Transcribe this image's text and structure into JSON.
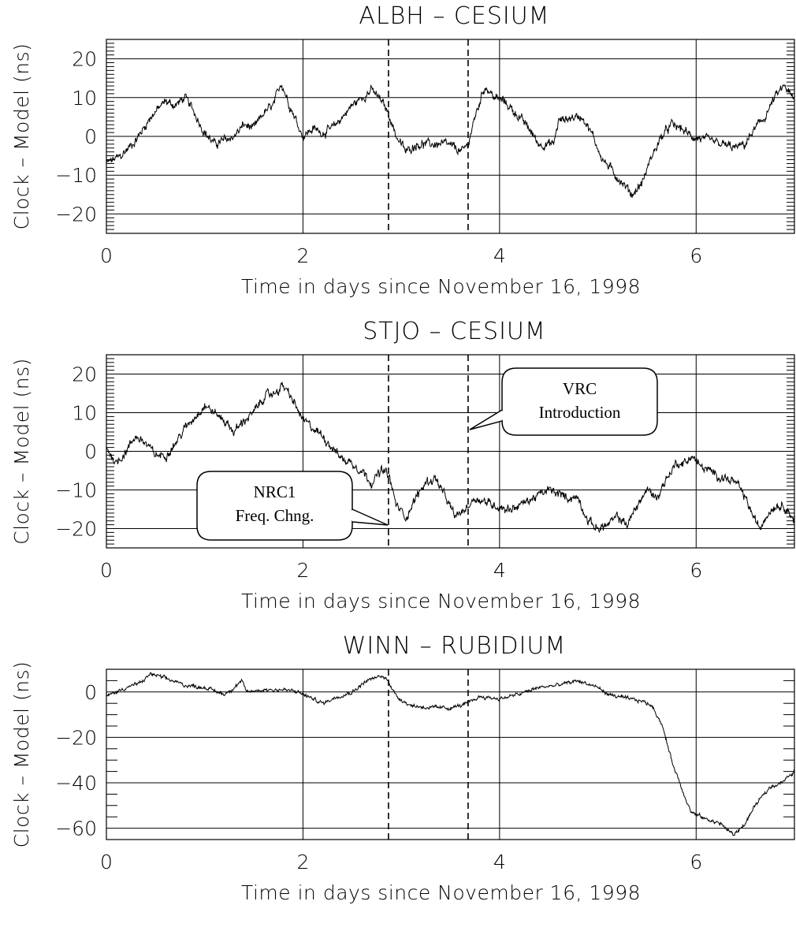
{
  "chart_data": [
    {
      "type": "line",
      "title": "ALBH – CESIUM",
      "xlabel": "Time in days since November 16, 1998",
      "ylabel": "Clock – Model (ns)",
      "xlim": [
        0,
        7
      ],
      "ylim": [
        -25,
        25
      ],
      "x_ticks": [
        0,
        2,
        4,
        6
      ],
      "y_ticks": [
        -20,
        -10,
        0,
        10,
        20
      ],
      "grid": true,
      "vlines": [
        2.87,
        3.68
      ],
      "anchors": [
        [
          0,
          -7
        ],
        [
          0.15,
          -5
        ],
        [
          0.3,
          -1
        ],
        [
          0.45,
          5
        ],
        [
          0.6,
          9
        ],
        [
          0.7,
          8
        ],
        [
          0.8,
          10
        ],
        [
          0.9,
          6
        ],
        [
          1.0,
          1
        ],
        [
          1.1,
          -2
        ],
        [
          1.2,
          -1
        ],
        [
          1.3,
          0
        ],
        [
          1.4,
          3
        ],
        [
          1.5,
          2
        ],
        [
          1.6,
          6
        ],
        [
          1.7,
          8
        ],
        [
          1.78,
          14
        ],
        [
          1.85,
          9
        ],
        [
          1.95,
          3
        ],
        [
          2.0,
          0
        ],
        [
          2.1,
          2
        ],
        [
          2.2,
          1
        ],
        [
          2.3,
          2
        ],
        [
          2.4,
          5
        ],
        [
          2.5,
          8
        ],
        [
          2.6,
          10
        ],
        [
          2.7,
          12
        ],
        [
          2.8,
          9
        ],
        [
          2.87,
          6
        ],
        [
          2.95,
          0
        ],
        [
          3.05,
          -4
        ],
        [
          3.15,
          -2
        ],
        [
          3.3,
          -2
        ],
        [
          3.45,
          -2
        ],
        [
          3.55,
          -3
        ],
        [
          3.62,
          -4
        ],
        [
          3.68,
          -2
        ],
        [
          3.75,
          5
        ],
        [
          3.85,
          13
        ],
        [
          3.95,
          10
        ],
        [
          4.05,
          9
        ],
        [
          4.2,
          5
        ],
        [
          4.3,
          2
        ],
        [
          4.4,
          -2
        ],
        [
          4.55,
          -2
        ],
        [
          4.6,
          4
        ],
        [
          4.75,
          5
        ],
        [
          4.85,
          5
        ],
        [
          4.95,
          0
        ],
        [
          5.05,
          -6
        ],
        [
          5.15,
          -9
        ],
        [
          5.25,
          -12
        ],
        [
          5.35,
          -15
        ],
        [
          5.45,
          -12
        ],
        [
          5.55,
          -5
        ],
        [
          5.65,
          0
        ],
        [
          5.75,
          3
        ],
        [
          5.85,
          2
        ],
        [
          5.95,
          0
        ],
        [
          6.1,
          -1
        ],
        [
          6.25,
          -2
        ],
        [
          6.4,
          -3
        ],
        [
          6.5,
          -2
        ],
        [
          6.6,
          2
        ],
        [
          6.7,
          5
        ],
        [
          6.8,
          10
        ],
        [
          6.9,
          13
        ],
        [
          7.0,
          9
        ]
      ],
      "noise": 1.1
    },
    {
      "type": "line",
      "title": "STJO – CESIUM",
      "xlabel": "Time in days since November 16, 1998",
      "ylabel": "Clock – Model (ns)",
      "xlim": [
        0,
        7
      ],
      "ylim": [
        -25,
        25
      ],
      "x_ticks": [
        0,
        2,
        4,
        6
      ],
      "y_ticks": [
        -20,
        -10,
        0,
        10,
        20
      ],
      "grid": true,
      "vlines": [
        2.87,
        3.68
      ],
      "anchors": [
        [
          0,
          1
        ],
        [
          0.1,
          -3
        ],
        [
          0.2,
          0
        ],
        [
          0.3,
          4
        ],
        [
          0.4,
          2
        ],
        [
          0.5,
          -1
        ],
        [
          0.6,
          -1
        ],
        [
          0.7,
          2
        ],
        [
          0.8,
          6
        ],
        [
          0.9,
          9
        ],
        [
          1.0,
          12
        ],
        [
          1.1,
          10
        ],
        [
          1.2,
          8
        ],
        [
          1.3,
          5
        ],
        [
          1.4,
          8
        ],
        [
          1.5,
          10
        ],
        [
          1.6,
          14
        ],
        [
          1.7,
          15
        ],
        [
          1.8,
          17
        ],
        [
          1.9,
          13
        ],
        [
          2.0,
          8
        ],
        [
          2.1,
          6
        ],
        [
          2.2,
          4
        ],
        [
          2.3,
          1
        ],
        [
          2.4,
          -2
        ],
        [
          2.5,
          -3
        ],
        [
          2.6,
          -5
        ],
        [
          2.7,
          -8
        ],
        [
          2.8,
          -5
        ],
        [
          2.87,
          -6
        ],
        [
          2.95,
          -14
        ],
        [
          3.05,
          -17
        ],
        [
          3.15,
          -12
        ],
        [
          3.25,
          -8
        ],
        [
          3.35,
          -7
        ],
        [
          3.45,
          -12
        ],
        [
          3.55,
          -17
        ],
        [
          3.65,
          -15
        ],
        [
          3.75,
          -12
        ],
        [
          3.85,
          -13
        ],
        [
          3.95,
          -14
        ],
        [
          4.1,
          -15
        ],
        [
          4.2,
          -14
        ],
        [
          4.35,
          -12
        ],
        [
          4.5,
          -10
        ],
        [
          4.6,
          -11
        ],
        [
          4.7,
          -12
        ],
        [
          4.8,
          -12
        ],
        [
          4.9,
          -18
        ],
        [
          5.0,
          -20
        ],
        [
          5.1,
          -19
        ],
        [
          5.2,
          -17
        ],
        [
          5.3,
          -19
        ],
        [
          5.4,
          -14
        ],
        [
          5.5,
          -10
        ],
        [
          5.6,
          -12
        ],
        [
          5.7,
          -7
        ],
        [
          5.8,
          -3
        ],
        [
          5.9,
          -3
        ],
        [
          5.95,
          -1
        ],
        [
          6.05,
          -4
        ],
        [
          6.2,
          -6
        ],
        [
          6.3,
          -7
        ],
        [
          6.4,
          -8
        ],
        [
          6.5,
          -12
        ],
        [
          6.6,
          -18
        ],
        [
          6.65,
          -20
        ],
        [
          6.7,
          -17
        ],
        [
          6.8,
          -14
        ],
        [
          6.9,
          -14
        ],
        [
          7.0,
          -18
        ]
      ],
      "noise": 1.1,
      "annotations": [
        {
          "lines": [
            "VRC",
            "Introduction"
          ]
        },
        {
          "lines": [
            "NRC1",
            "Freq. Chng."
          ]
        }
      ]
    },
    {
      "type": "line",
      "title": "WINN – RUBIDIUM",
      "xlabel": "Time in days since November 16, 1998",
      "ylabel": "Clock – Model (ns)",
      "xlim": [
        0,
        7
      ],
      "ylim": [
        -65,
        10
      ],
      "x_ticks": [
        0,
        2,
        4,
        6
      ],
      "y_ticks": [
        -60,
        -40,
        -20,
        0
      ],
      "grid": true,
      "vlines": [
        2.87,
        3.68
      ],
      "anchors": [
        [
          0,
          -2
        ],
        [
          0.2,
          2
        ],
        [
          0.35,
          4
        ],
        [
          0.45,
          8
        ],
        [
          0.6,
          6
        ],
        [
          0.8,
          3
        ],
        [
          1.0,
          2
        ],
        [
          1.2,
          -1
        ],
        [
          1.3,
          2
        ],
        [
          1.38,
          5
        ],
        [
          1.42,
          0
        ],
        [
          1.6,
          1
        ],
        [
          1.8,
          1
        ],
        [
          1.95,
          0
        ],
        [
          2.0,
          -1
        ],
        [
          2.1,
          -3
        ],
        [
          2.2,
          -5
        ],
        [
          2.35,
          -2
        ],
        [
          2.5,
          0
        ],
        [
          2.65,
          5
        ],
        [
          2.8,
          7
        ],
        [
          2.87,
          5
        ],
        [
          2.95,
          -2
        ],
        [
          3.1,
          -6
        ],
        [
          3.3,
          -7
        ],
        [
          3.5,
          -7
        ],
        [
          3.6,
          -6
        ],
        [
          3.68,
          -5
        ],
        [
          3.8,
          -2
        ],
        [
          4.0,
          -3
        ],
        [
          4.2,
          -1
        ],
        [
          4.4,
          2
        ],
        [
          4.6,
          3
        ],
        [
          4.8,
          5
        ],
        [
          5.0,
          2
        ],
        [
          5.1,
          -1
        ],
        [
          5.3,
          -3
        ],
        [
          5.45,
          -4
        ],
        [
          5.55,
          -6
        ],
        [
          5.65,
          -14
        ],
        [
          5.75,
          -30
        ],
        [
          5.85,
          -42
        ],
        [
          5.95,
          -53
        ],
        [
          6.1,
          -56
        ],
        [
          6.25,
          -58
        ],
        [
          6.38,
          -63
        ],
        [
          6.5,
          -58
        ],
        [
          6.6,
          -50
        ],
        [
          6.75,
          -42
        ],
        [
          6.9,
          -39
        ],
        [
          7.0,
          -35
        ]
      ],
      "noise": 0.8
    }
  ]
}
